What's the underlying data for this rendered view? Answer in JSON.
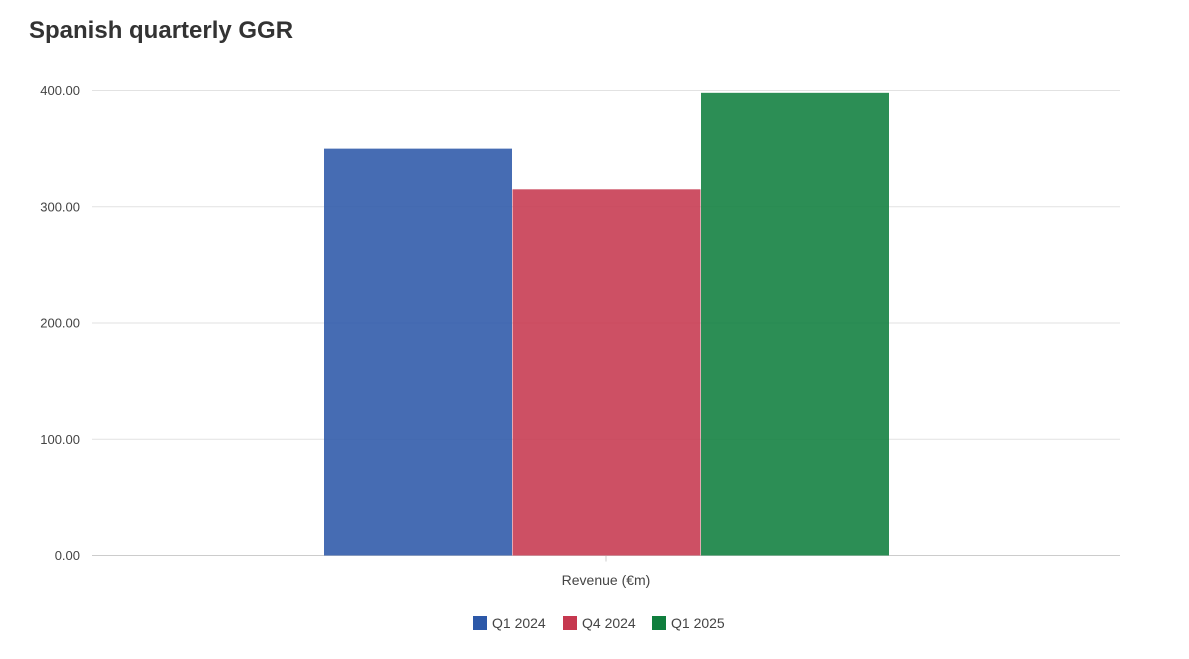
{
  "chart_data": {
    "type": "bar",
    "title": "Spanish quarterly GGR",
    "categories": [
      "Revenue (€m)"
    ],
    "series": [
      {
        "name": "Q1 2024",
        "values": [
          350.0
        ],
        "color": "#2c58a8"
      },
      {
        "name": "Q4 2024",
        "values": [
          315.0
        ],
        "color": "#c6384f"
      },
      {
        "name": "Q1 2025",
        "values": [
          398.0
        ],
        "color": "#0f7e3d"
      }
    ],
    "yticks": [
      "0.00",
      "100.00",
      "200.00",
      "300.00",
      "400.00"
    ],
    "ylim": [
      0,
      400
    ],
    "grid": true,
    "legend": "bottom"
  }
}
